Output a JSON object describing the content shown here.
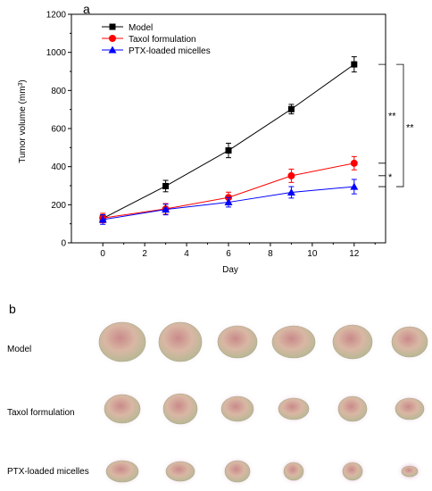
{
  "panels": {
    "a": "a",
    "b": "b"
  },
  "chart_data": {
    "type": "line",
    "xlabel": "Day",
    "ylabel": "Tumor volume (mm³)",
    "xlim": [
      -1.5,
      13.5
    ],
    "ylim": [
      0,
      1200
    ],
    "xticks": [
      0,
      2,
      4,
      6,
      8,
      10,
      12
    ],
    "yticks": [
      0,
      200,
      400,
      600,
      800,
      1000,
      1200
    ],
    "legend_position": "top-left",
    "x": [
      0,
      3,
      6,
      9,
      12
    ],
    "series": [
      {
        "name": "Model",
        "color": "#000000",
        "marker": "square",
        "values": [
          128,
          298,
          485,
          702,
          937
        ],
        "errors": [
          20,
          30,
          38,
          25,
          40
        ]
      },
      {
        "name": "Taxol formulation",
        "color": "#ff0000",
        "marker": "circle",
        "values": [
          130,
          178,
          238,
          352,
          418
        ],
        "errors": [
          25,
          28,
          28,
          35,
          35
        ]
      },
      {
        "name": "PTX-loaded micelles",
        "color": "#0000ff",
        "marker": "triangle",
        "values": [
          122,
          175,
          213,
          265,
          295
        ],
        "errors": [
          25,
          28,
          25,
          30,
          38
        ]
      }
    ],
    "significance": [
      {
        "label": "**",
        "between": [
          "Model",
          "Taxol formulation"
        ]
      },
      {
        "label": "**",
        "between": [
          "Model",
          "PTX-loaded micelles"
        ]
      },
      {
        "label": "*",
        "between": [
          "Taxol formulation",
          "PTX-loaded micelles"
        ]
      }
    ]
  },
  "photo_panel": {
    "rows": [
      {
        "label": "Model",
        "tumor_count": 6
      },
      {
        "label": "Taxol formulation",
        "tumor_count": 6
      },
      {
        "label": "PTX-loaded micelles",
        "tumor_count": 6
      }
    ]
  }
}
